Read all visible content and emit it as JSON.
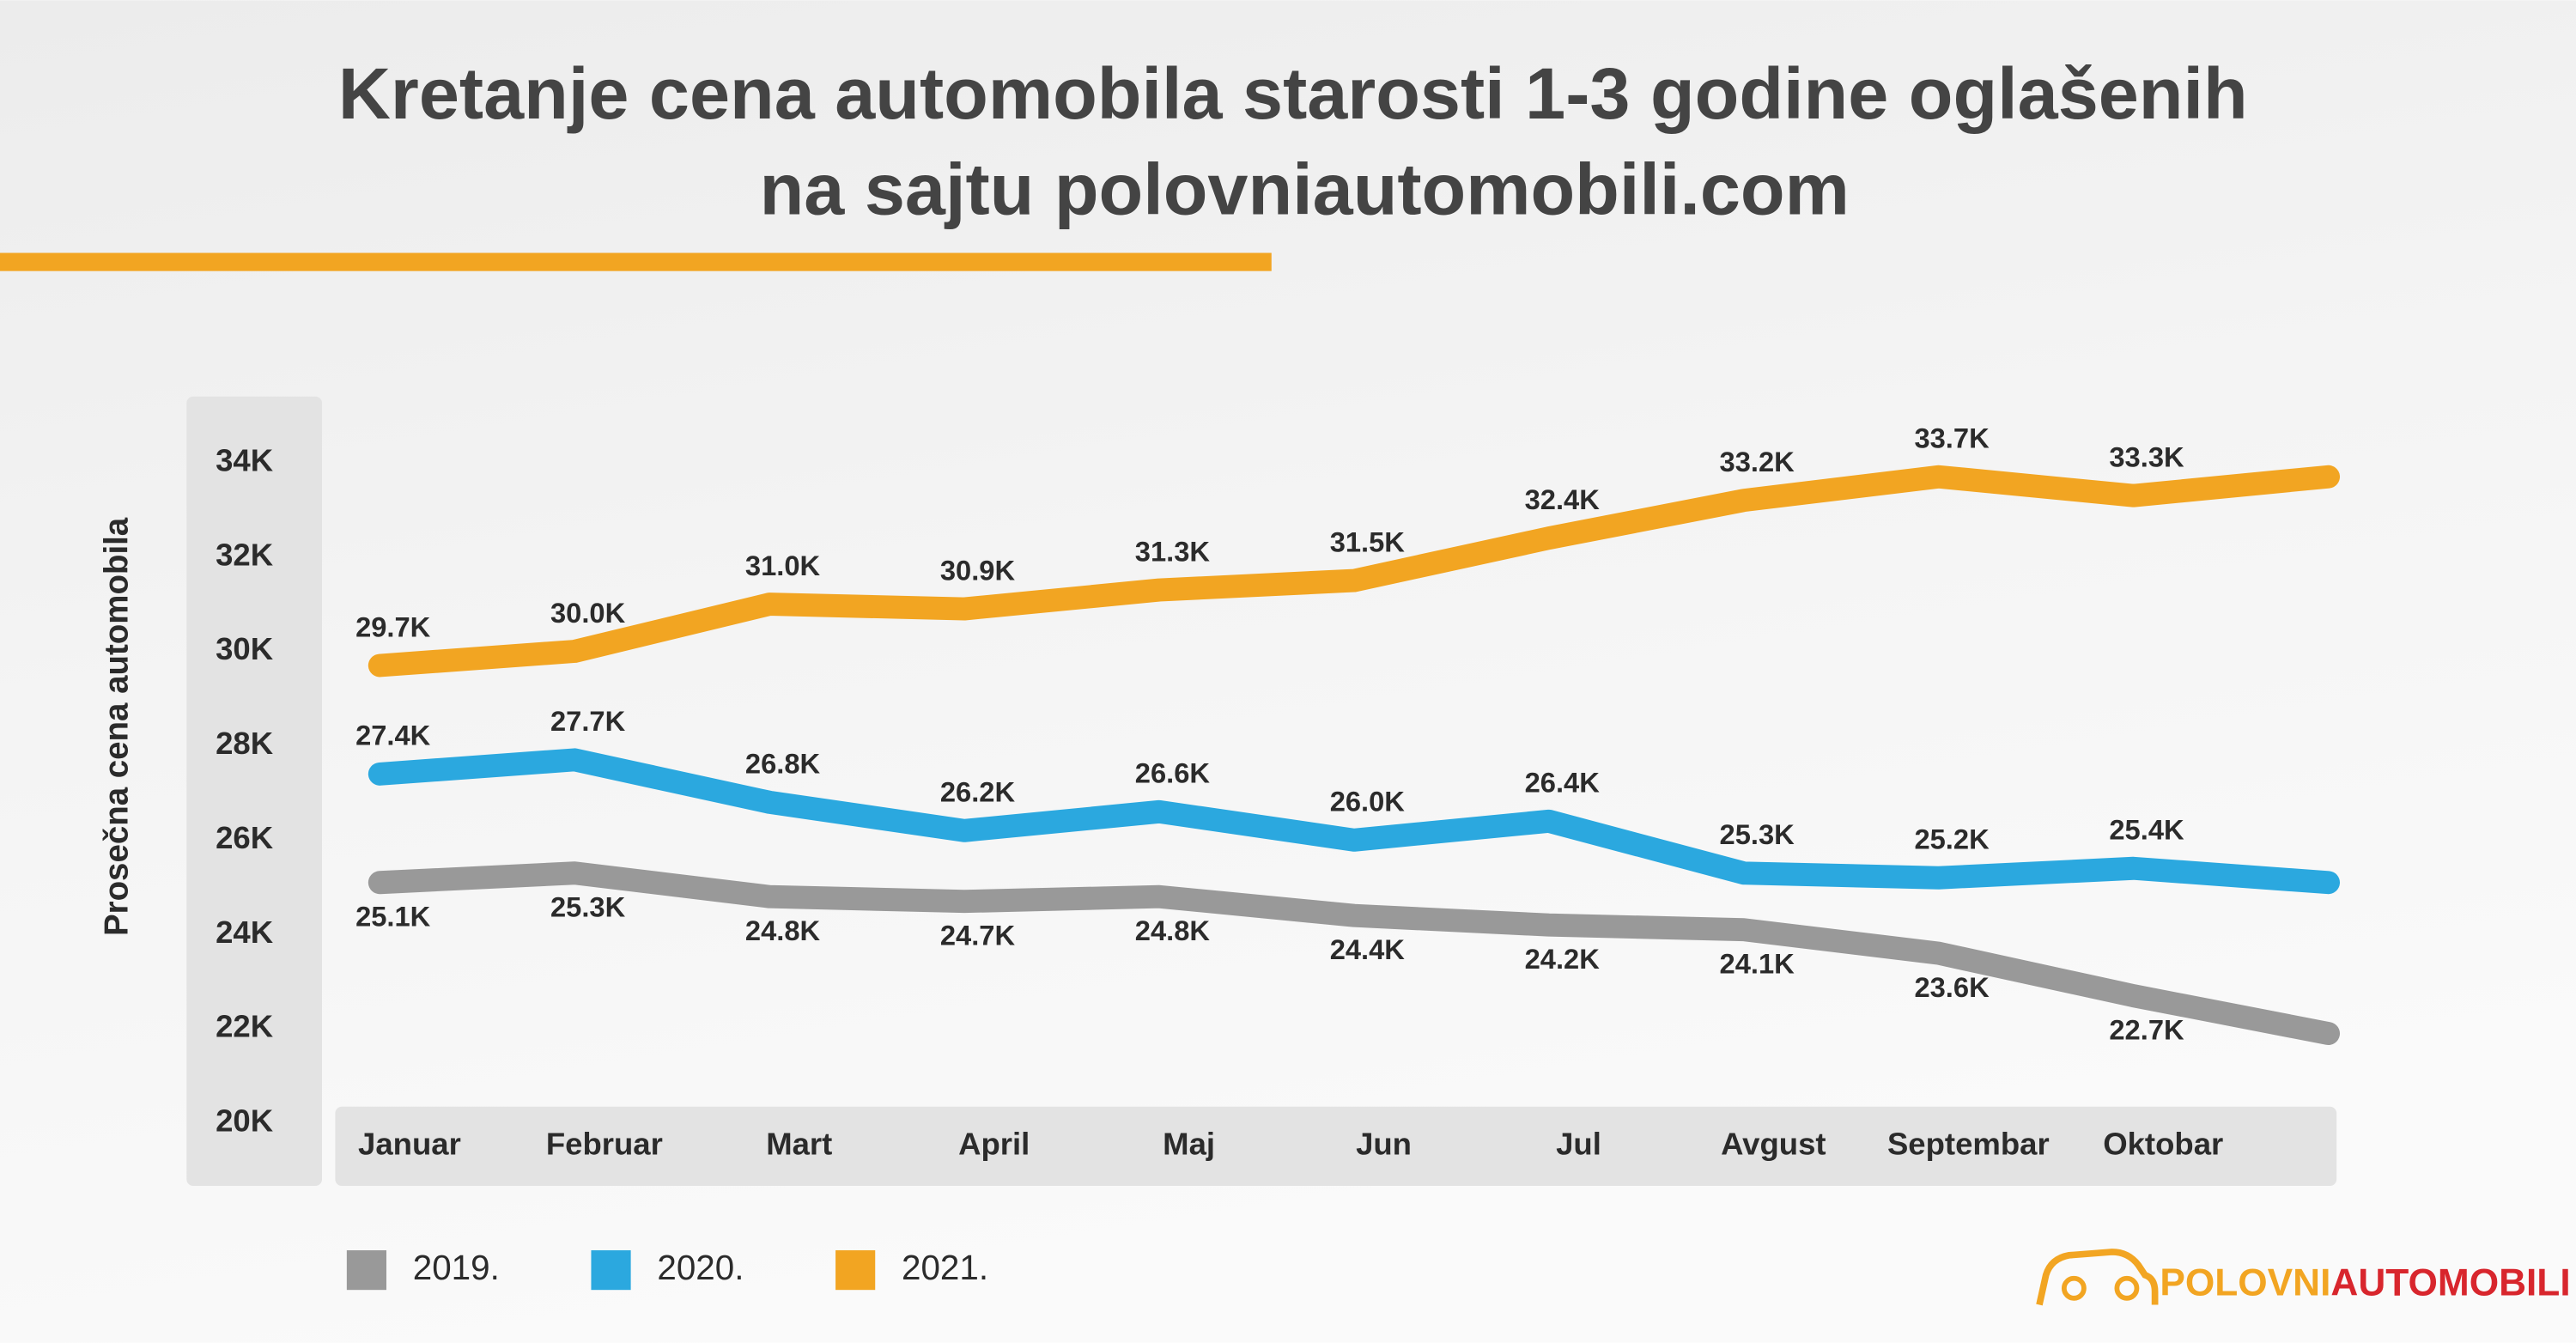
{
  "chart_data": {
    "type": "line",
    "title": [
      "Kretanje cena automobila starosti 1-3 godine oglašenih",
      "na sajtu polovniautomobili.com"
    ],
    "y_label": "Prosečna cena automobila",
    "categories": [
      "Januar",
      "Februar",
      "Mart",
      "April",
      "Maj",
      "Jun",
      "Jul",
      "Avgust",
      "Septembar",
      "Oktobar",
      null
    ],
    "ylim": [
      20,
      34
    ],
    "yticks": [
      {
        "value": 20,
        "label": "20K"
      },
      {
        "value": 22,
        "label": "22K"
      },
      {
        "value": 24,
        "label": "24K"
      },
      {
        "value": 26,
        "label": "26K"
      },
      {
        "value": 28,
        "label": "28K"
      },
      {
        "value": 30,
        "label": "30K"
      },
      {
        "value": 32,
        "label": "32K"
      },
      {
        "value": 34,
        "label": "34K"
      }
    ],
    "grid": false,
    "legend": "bottom-left",
    "series": [
      {
        "name": "2019.",
        "color": "#999999",
        "label_side": "below",
        "values": [
          25.1,
          25.3,
          24.8,
          24.7,
          24.8,
          24.4,
          24.2,
          24.1,
          23.6,
          22.7,
          21.9
        ],
        "value_labels": [
          "25.1K",
          "25.3K",
          "24.8K",
          "24.7K",
          "24.8K",
          "24.4K",
          "24.2K",
          "24.1K",
          "23.6K",
          "22.7K",
          null
        ]
      },
      {
        "name": "2020.",
        "color": "#2ba8df",
        "label_side": "above",
        "values": [
          27.4,
          27.7,
          26.8,
          26.2,
          26.6,
          26.0,
          26.4,
          25.3,
          25.2,
          25.4,
          25.1
        ],
        "value_labels": [
          "27.4K",
          "27.7K",
          "26.8K",
          "26.2K",
          "26.6K",
          "26.0K",
          "26.4K",
          "25.3K",
          "25.2K",
          "25.4K",
          null
        ]
      },
      {
        "name": "2021.",
        "color": "#f2a522",
        "label_side": "above",
        "values": [
          29.7,
          30.0,
          31.0,
          30.9,
          31.3,
          31.5,
          32.4,
          33.2,
          33.7,
          33.3,
          33.7
        ],
        "value_labels": [
          "29.7K",
          "30.0K",
          "31.0K",
          "30.9K",
          "31.3K",
          "31.5K",
          "32.4K",
          "33.2K",
          "33.7K",
          "33.3K",
          null
        ]
      }
    ]
  },
  "logo": [
    "POLOVNI",
    "AUTOMOBILI"
  ]
}
